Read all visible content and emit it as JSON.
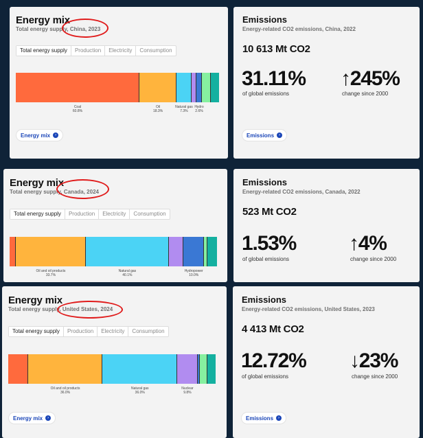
{
  "colors": {
    "coal": "#ff6a3d",
    "oil": "#ffb43d",
    "gas": "#4bd3f5",
    "nuclear": "#b18cf0",
    "hydro": "#3a78d4",
    "wind_solar": "#86f0a0",
    "other": "#14b0a0",
    "accent": "#1b46b8",
    "highlight": "#e01b1b"
  },
  "tabs": [
    "Total energy supply",
    "Production",
    "Electricity",
    "Consumption"
  ],
  "energy_mix_link": "Energy mix",
  "emissions_link": "Emissions",
  "rows": [
    {
      "mix": {
        "title": "Energy mix",
        "subtitle": "Total energy supply, China, 2023",
        "segments": [
          {
            "key": "coal",
            "share": 60.8,
            "label": "Coal",
            "pct": "60.8%"
          },
          {
            "key": "oil",
            "share": 18.3,
            "label": "Oil",
            "pct": "18.3%"
          },
          {
            "key": "gas",
            "share": 7.3,
            "label": "Natural gas",
            "pct": "7.3%"
          },
          {
            "key": "nuclear",
            "share": 2.5,
            "label": "",
            "pct": ""
          },
          {
            "key": "hydro",
            "share": 2.6,
            "label": "Hydro",
            "pct": "2.6%"
          },
          {
            "key": "wind_solar",
            "share": 4.5,
            "label": "",
            "pct": ""
          },
          {
            "key": "other",
            "share": 4.0,
            "label": "",
            "pct": ""
          }
        ]
      },
      "em": {
        "title": "Emissions",
        "subtitle": "Energy-related CO2 emissions, China, 2022",
        "total": "10 613 Mt CO2",
        "global_share": "31.11%",
        "global_label": "of global emissions",
        "change": "↑245%",
        "change_label": "change since 2000"
      }
    },
    {
      "mix": {
        "title": "Energy mix",
        "subtitle": "Total energy supply, Canada, 2024",
        "segments": [
          {
            "key": "coal",
            "share": 3.0,
            "label": "",
            "pct": ""
          },
          {
            "key": "oil",
            "share": 33.7,
            "label": "Oil and oil products",
            "pct": "33.7%"
          },
          {
            "key": "gas",
            "share": 40.1,
            "label": "Natural gas",
            "pct": "40.1%"
          },
          {
            "key": "nuclear",
            "share": 7.0,
            "label": "",
            "pct": ""
          },
          {
            "key": "hydro",
            "share": 10.0,
            "label": "Hydropower",
            "pct": "10.0%"
          },
          {
            "key": "wind_solar",
            "share": 1.5,
            "label": "",
            "pct": ""
          },
          {
            "key": "other",
            "share": 4.7,
            "label": "",
            "pct": ""
          }
        ]
      },
      "em": {
        "title": "Emissions",
        "subtitle": "Energy-related CO2 emissions, Canada, 2022",
        "total": "523 Mt CO2",
        "global_share": "1.53%",
        "global_label": "of global emissions",
        "change": "↑4%",
        "change_label": "change since 2000"
      }
    },
    {
      "mix": {
        "title": "Energy mix",
        "subtitle": "Total energy supply, United States, 2024",
        "segments": [
          {
            "key": "coal",
            "share": 9.5,
            "label": "",
            "pct": ""
          },
          {
            "key": "oil",
            "share": 36.0,
            "label": "Oil and oil products",
            "pct": "36.0%"
          },
          {
            "key": "gas",
            "share": 36.0,
            "label": "Natural gas",
            "pct": "36.0%"
          },
          {
            "key": "nuclear",
            "share": 9.8,
            "label": "Nuclear",
            "pct": "9.8%"
          },
          {
            "key": "hydro",
            "share": 1.2,
            "label": "",
            "pct": ""
          },
          {
            "key": "wind_solar",
            "share": 3.5,
            "label": "",
            "pct": ""
          },
          {
            "key": "other",
            "share": 4.0,
            "label": "",
            "pct": ""
          }
        ]
      },
      "em": {
        "title": "Emissions",
        "subtitle": "Energy-related CO2 emissions, United States, 2023",
        "total": "4 413 Mt CO2",
        "global_share": "12.72%",
        "global_label": "of global emissions",
        "change": "↓23%",
        "change_label": "change since 2000"
      }
    }
  ]
}
